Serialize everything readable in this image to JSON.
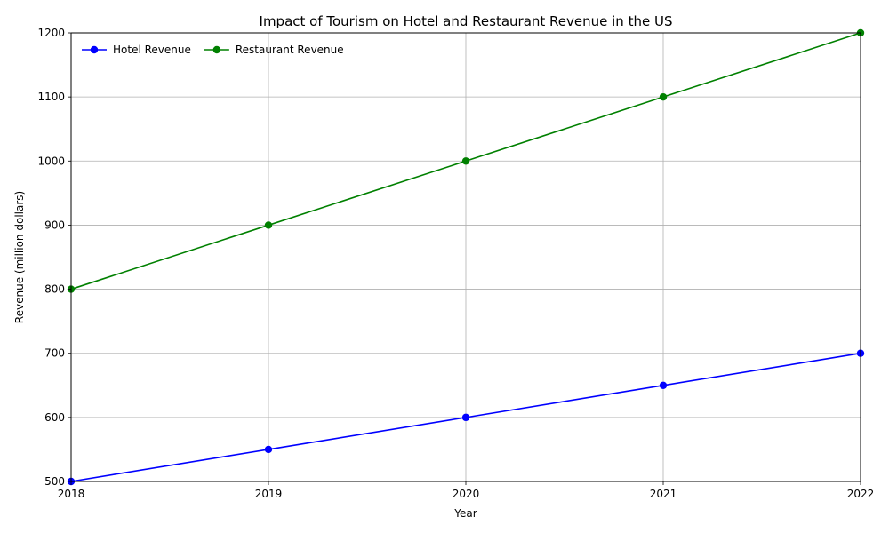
{
  "chart_data": {
    "type": "line",
    "title": "Impact of Tourism on Hotel and Restaurant Revenue in the US",
    "xlabel": "Year",
    "ylabel": "Revenue (million dollars)",
    "x": [
      2018,
      2019,
      2020,
      2021,
      2022
    ],
    "x_tick_labels": [
      "2018",
      "2019",
      "2020",
      "2021",
      "2022"
    ],
    "xlim": [
      2018,
      2022
    ],
    "ylim": [
      500,
      1200
    ],
    "y_ticks": [
      500,
      600,
      700,
      800,
      900,
      1000,
      1100,
      1200
    ],
    "grid": true,
    "legend_position": "top-left",
    "series": [
      {
        "name": "Hotel Revenue",
        "values": [
          500,
          550,
          600,
          650,
          700
        ],
        "color": "#0000ff",
        "marker": "circle"
      },
      {
        "name": "Restaurant Revenue",
        "values": [
          800,
          900,
          1000,
          1100,
          1200
        ],
        "color": "#008000",
        "marker": "circle"
      }
    ]
  }
}
